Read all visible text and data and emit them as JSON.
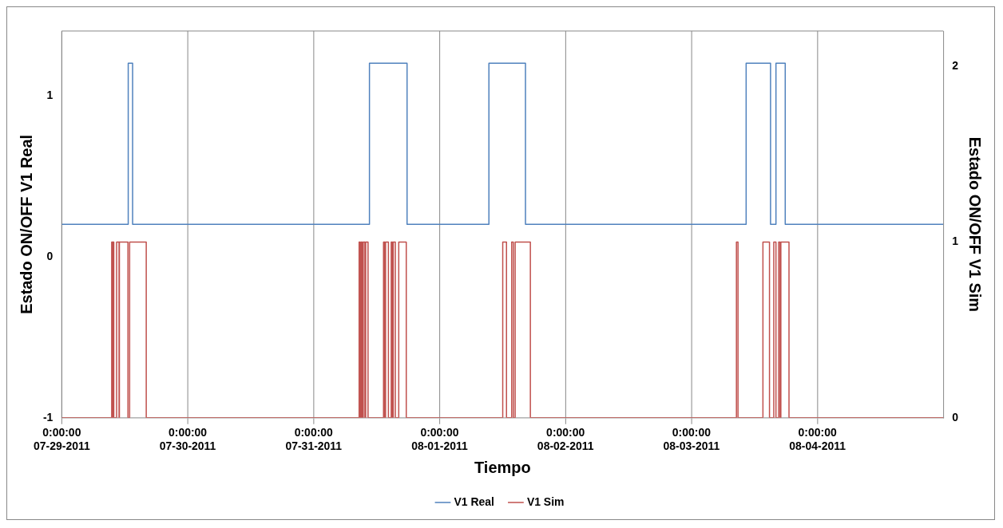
{
  "chart_data": {
    "type": "step",
    "xlabel": "Tiempo",
    "ylabel": "Estado ON/OFF V1 Real",
    "y2label": "Estado ON/OFF V1 Sim",
    "xlim": [
      "2011-07-29",
      "2011-08-05"
    ],
    "xticks": [
      {
        "value": "2011-07-29",
        "label": "0:00:00\n07-29-2011"
      },
      {
        "value": "2011-07-30",
        "label": "0:00:00\n07-30-2011"
      },
      {
        "value": "2011-07-31",
        "label": "0:00:00\n07-31-2011"
      },
      {
        "value": "2011-08-01",
        "label": "0:00:00\n08-01-2011"
      },
      {
        "value": "2011-08-02",
        "label": "0:00:00\n08-02-2011"
      },
      {
        "value": "2011-08-03",
        "label": "0:00:00\n08-03-2011"
      },
      {
        "value": "2011-08-04",
        "label": "0:00:00\n08-04-2011"
      }
    ],
    "ylim": [
      -1,
      1.4
    ],
    "yticks": [
      -1,
      0,
      1
    ],
    "y2lim": [
      0,
      2.2
    ],
    "y2ticks": [
      0,
      1,
      2
    ],
    "grid": "x",
    "legend": "bottom",
    "line_style": "solid",
    "marker": "none",
    "series": [
      {
        "name": "V1 Real",
        "color": "#4f81bd",
        "x": [
          "2011-07-29",
          "2011-07-29T12:40",
          "2011-07-29T13:30",
          "2011-07-31T10:38",
          "2011-07-31T17:48",
          "2011-08-01T09:24",
          "2011-08-01T16:22",
          "2011-08-03T10:25",
          "2011-08-03T15:04",
          "2011-08-03T16:06",
          "2011-08-03T17:52",
          "2011-08-05"
        ],
        "values": [
          0.2,
          1.2,
          0.2,
          1.2,
          0.2,
          1.2,
          0.2,
          1.2,
          0.2,
          1.2,
          0.2,
          0.2
        ]
      },
      {
        "name": "V1 Sim",
        "color": "#c0504d",
        "axis": "y2",
        "x": [
          "2011-07-29",
          "2011-07-29T09:31",
          "2011-07-29T09:41",
          "2011-07-29T09:45",
          "2011-07-29T09:55",
          "2011-07-29T10:27",
          "2011-07-29T10:55",
          "2011-07-29T10:59",
          "2011-07-29T12:37",
          "2011-07-29T12:56",
          "2011-07-29T16:06",
          "2011-07-31T08:40",
          "2011-07-31T08:54",
          "2011-07-31T09:04",
          "2011-07-31T09:17",
          "2011-07-31T09:27",
          "2011-07-31T09:46",
          "2011-07-31T09:55",
          "2011-07-31T10:22",
          "2011-07-31T13:19",
          "2011-07-31T13:33",
          "2011-07-31T13:42",
          "2011-07-31T14:15",
          "2011-07-31T14:47",
          "2011-07-31T15:01",
          "2011-07-31T15:10",
          "2011-07-31T15:34",
          "2011-07-31T16:13",
          "2011-07-31T17:39",
          "2011-08-01T12:02",
          "2011-08-01T12:45",
          "2011-08-01T13:44",
          "2011-08-01T14:03",
          "2011-08-01T14:24",
          "2011-08-01T17:18",
          "2011-08-03T08:34",
          "2011-08-03T08:52",
          "2011-08-03T13:37",
          "2011-08-03T14:52",
          "2011-08-03T15:41",
          "2011-08-03T16:06",
          "2011-08-03T16:37",
          "2011-08-03T16:53",
          "2011-08-03T17:02",
          "2011-08-03T18:35",
          "2011-08-05"
        ],
        "values": [
          0,
          1,
          0,
          1,
          0,
          1,
          0,
          1,
          0,
          1,
          0,
          1,
          0,
          1,
          0,
          1,
          0,
          1,
          0,
          1,
          0,
          1,
          0,
          1,
          0,
          1,
          0,
          1,
          0,
          1,
          0,
          1,
          0,
          1,
          0,
          1,
          0,
          1,
          0,
          1,
          0,
          1,
          0,
          1,
          0,
          0
        ]
      }
    ]
  }
}
